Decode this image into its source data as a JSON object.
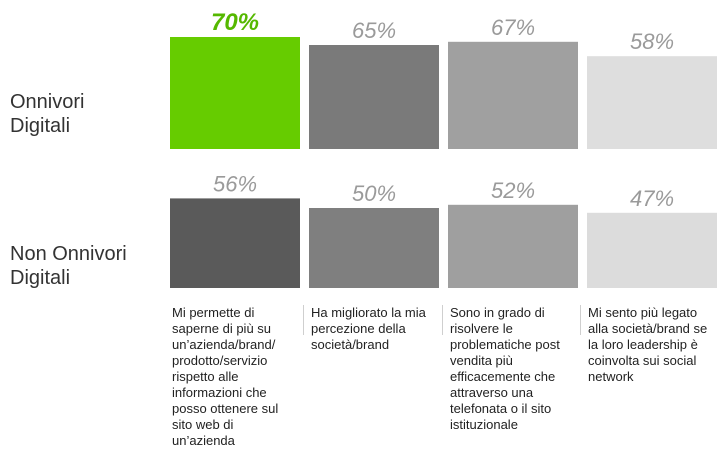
{
  "chart_data": {
    "type": "bar",
    "categories": [
      "Mi permette di saperne di più su un’azienda/brand/ prodotto/servizio rispetto alle informazioni che posso ottenere sul sito web di un’azienda",
      "Ha migliorato la mia percezione della società/brand",
      "Sono in grado di risolvere le problematiche post vendita più efficacemente che attraverso una telefonata o il sito istituzionale",
      "Mi sento più legato alla società/brand se la loro leadership è coinvolta sui social network"
    ],
    "series": [
      {
        "name": "Onnivori Digitali",
        "values": [
          70,
          65,
          67,
          58
        ],
        "value_labels": [
          "70%",
          "65%",
          "67%",
          "58%"
        ],
        "colors": [
          "#66cc00",
          "#7a7a7a",
          "#a0a0a0",
          "#dedede"
        ],
        "label_colors": [
          "#55b800",
          "#9a9a9a",
          "#9a9a9a",
          "#9a9a9a"
        ],
        "highlight_index": 0
      },
      {
        "name": "Non Onnivori Digitali",
        "values": [
          56,
          50,
          52,
          47
        ],
        "value_labels": [
          "56%",
          "50%",
          "52%",
          "47%"
        ],
        "colors": [
          "#5a5a5a",
          "#7f7f7f",
          "#9f9f9f",
          "#dcdcdc"
        ],
        "label_colors": [
          "#9a9a9a",
          "#9a9a9a",
          "#9a9a9a",
          "#9a9a9a"
        ],
        "highlight_index": -1
      }
    ],
    "row_labels": [
      [
        "Onnivori",
        "Digitali"
      ],
      [
        "Non Onnivori",
        "Digitali"
      ]
    ],
    "category_label_lines": [
      [
        "Mi permette di",
        "saperne di più su",
        "un’azienda/brand/",
        "prodotto/servizio",
        "rispetto alle",
        "informazioni che",
        "posso ottenere sul",
        "sito web di",
        "un’azienda"
      ],
      [
        "Ha migliorato la mia",
        "percezione della",
        "società/brand"
      ],
      [
        "Sono in grado di",
        "risolvere le",
        "problematiche post",
        "vendita più",
        "efficacemente che",
        "attraverso una",
        "telefonata o il sito",
        "istituzionale"
      ],
      [
        "Mi sento più legato",
        "alla società/brand se",
        "la loro leadership è",
        "coinvolta sui social",
        "network"
      ]
    ],
    "title": "",
    "xlabel": "",
    "ylabel": "",
    "ylim": [
      0,
      100
    ],
    "grid": false,
    "legend": "none"
  }
}
